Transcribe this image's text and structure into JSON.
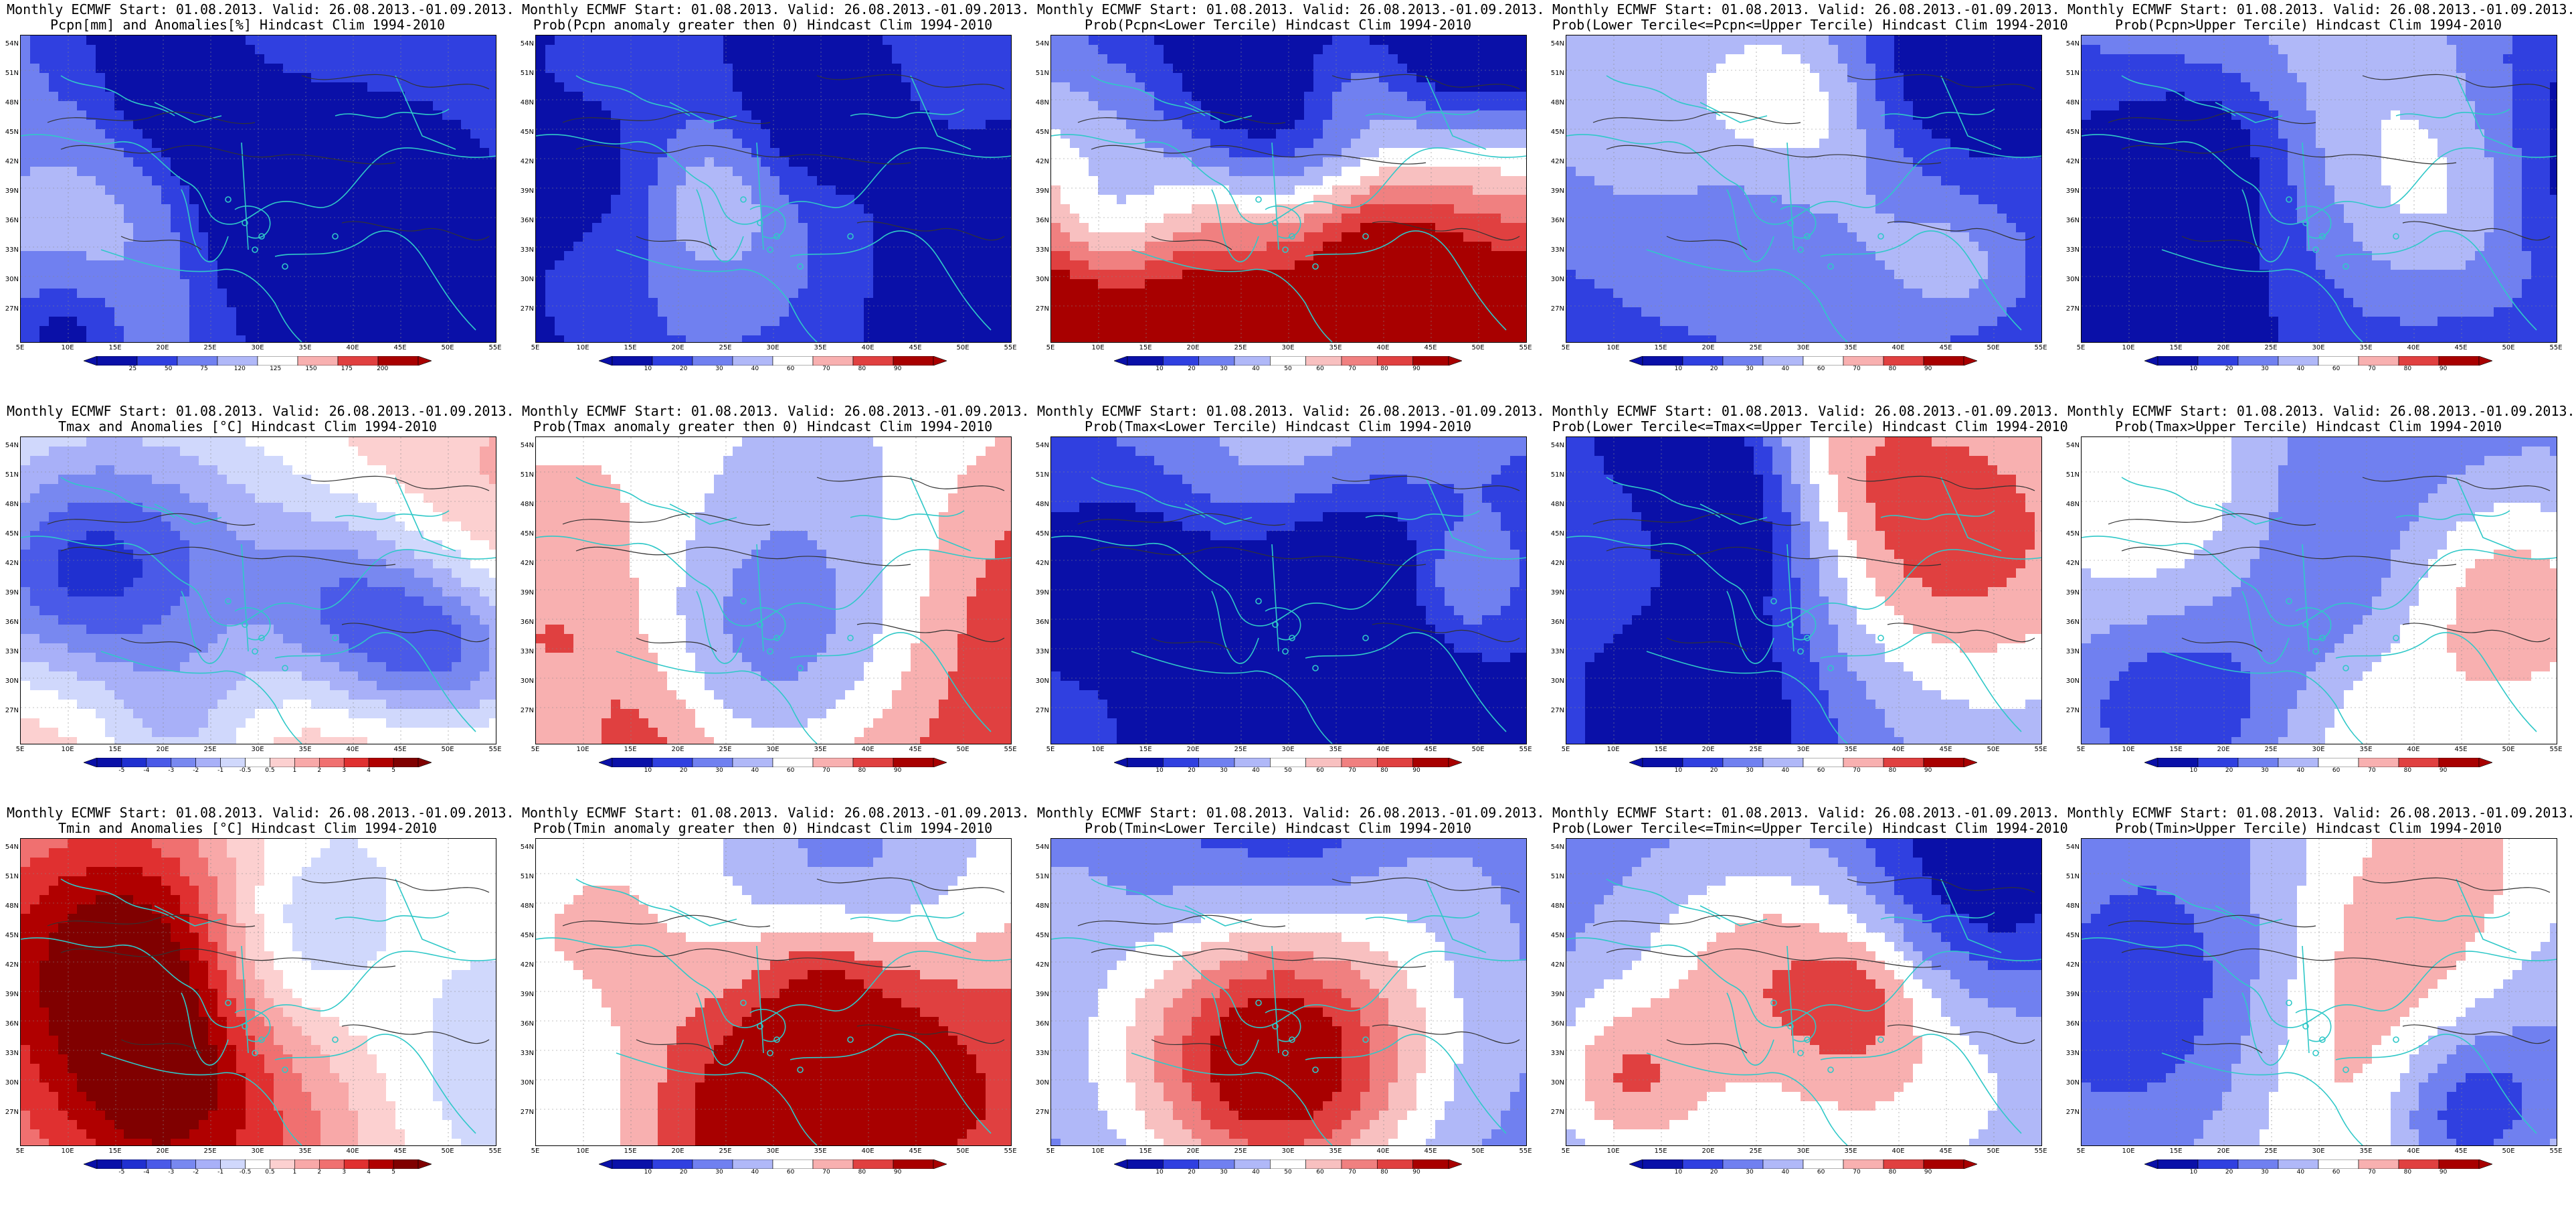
{
  "figure": {
    "row_title_prefix": "Monthly ECMWF Start: 01.08.2013. Valid: 26.08.2013.-01.09.2013.",
    "lat_labels": [
      "54N",
      "51N",
      "48N",
      "45N",
      "42N",
      "39N",
      "36N",
      "33N",
      "30N",
      "27N"
    ],
    "lon_labels": [
      "5E",
      "10E",
      "15E",
      "20E",
      "25E",
      "30E",
      "35E",
      "40E",
      "45E",
      "50E",
      "55E"
    ],
    "colors": {
      "coast": "#30c8c8",
      "contour": "#333333",
      "dark_blue": "#0a10a8",
      "dark_red": "#a80000"
    }
  },
  "panels": [
    {
      "title": "Pcpn[mm] and Anomalies[%] Hindcast Clim 1994-2010",
      "scheme": "pcpn_anom",
      "cbar": [
        "25",
        "50",
        "75",
        "120",
        "125",
        "150",
        "175",
        "200"
      ],
      "colors": [
        "#0a10a8",
        "#3040e0",
        "#7080f0",
        "#b0b8f8",
        "#ffffff",
        "#f8b0b0",
        "#e04040",
        "#a80000"
      ]
    },
    {
      "title": "Prob(Pcpn anomaly greater then 0) Hindcast Clim 1994-2010",
      "scheme": "prob_pcpn_gt0",
      "cbar": [
        "10",
        "20",
        "30",
        "40",
        "60",
        "70",
        "80",
        "90"
      ],
      "colors": [
        "#0a10a8",
        "#3040e0",
        "#7080f0",
        "#b0b8f8",
        "#ffffff",
        "#f8b0b0",
        "#e04040",
        "#a80000"
      ]
    },
    {
      "title": "Prob(Pcpn<Lower Tercile) Hindcast Clim 1994-2010",
      "scheme": "prob_pcpn_lower",
      "cbar": [
        "10",
        "20",
        "30",
        "40",
        "50",
        "60",
        "70",
        "80",
        "90"
      ],
      "colors": [
        "#0a10a8",
        "#3040e0",
        "#7080f0",
        "#b0b8f8",
        "#ffffff",
        "#f8c0c0",
        "#f08080",
        "#e04040",
        "#a80000"
      ]
    },
    {
      "title": "Prob(Lower Tercile<=Pcpn<=Upper Tercile) Hindcast Clim 1994-2010",
      "scheme": "prob_pcpn_mid",
      "cbar": [
        "10",
        "20",
        "30",
        "40",
        "60",
        "70",
        "80",
        "90"
      ],
      "colors": [
        "#0a10a8",
        "#3040e0",
        "#7080f0",
        "#b0b8f8",
        "#ffffff",
        "#f8b0b0",
        "#e04040",
        "#a80000"
      ]
    },
    {
      "title": "Prob(Pcpn>Upper Tercile) Hindcast Clim 1994-2010",
      "scheme": "prob_pcpn_upper",
      "cbar": [
        "10",
        "20",
        "30",
        "40",
        "60",
        "70",
        "80",
        "90"
      ],
      "colors": [
        "#0a10a8",
        "#3040e0",
        "#7080f0",
        "#b0b8f8",
        "#ffffff",
        "#f8b0b0",
        "#e04040",
        "#a80000"
      ]
    },
    {
      "title": "Tmax and Anomalies [°C] Hindcast Clim 1994-2010",
      "scheme": "tmax_anom",
      "cbar": [
        "-5",
        "-4",
        "-3",
        "-2",
        "-1",
        "-0.5",
        "0.5",
        "1",
        "2",
        "3",
        "4",
        "5"
      ],
      "colors": [
        "#0a10a8",
        "#2030d0",
        "#4a5ae8",
        "#7888f0",
        "#a8b0f8",
        "#d0d8fc",
        "#ffffff",
        "#fcd0d0",
        "#f8a8a8",
        "#f07070",
        "#e03030",
        "#b00000",
        "#800000"
      ]
    },
    {
      "title": "Prob(Tmax anomaly greater then 0) Hindcast Clim 1994-2010",
      "scheme": "prob_tmax_gt0",
      "cbar": [
        "10",
        "20",
        "30",
        "40",
        "60",
        "70",
        "80",
        "90"
      ],
      "colors": [
        "#0a10a8",
        "#3040e0",
        "#7080f0",
        "#b0b8f8",
        "#ffffff",
        "#f8b0b0",
        "#e04040",
        "#a80000"
      ]
    },
    {
      "title": "Prob(Tmax<Lower Tercile) Hindcast Clim 1994-2010",
      "scheme": "prob_tmax_lower",
      "cbar": [
        "10",
        "20",
        "30",
        "40",
        "50",
        "60",
        "70",
        "80",
        "90"
      ],
      "colors": [
        "#0a10a8",
        "#3040e0",
        "#7080f0",
        "#b0b8f8",
        "#ffffff",
        "#f8c0c0",
        "#f08080",
        "#e04040",
        "#a80000"
      ]
    },
    {
      "title": "Prob(Lower Tercile<=Tmax<=Upper Tercile) Hindcast Clim 1994-2010",
      "scheme": "prob_tmax_mid",
      "cbar": [
        "10",
        "20",
        "30",
        "40",
        "60",
        "70",
        "80",
        "90"
      ],
      "colors": [
        "#0a10a8",
        "#3040e0",
        "#7080f0",
        "#b0b8f8",
        "#ffffff",
        "#f8b0b0",
        "#e04040",
        "#a80000"
      ]
    },
    {
      "title": "Prob(Tmax>Upper Tercile) Hindcast Clim 1994-2010",
      "scheme": "prob_tmax_upper",
      "cbar": [
        "10",
        "20",
        "30",
        "40",
        "60",
        "70",
        "80",
        "90"
      ],
      "colors": [
        "#0a10a8",
        "#3040e0",
        "#7080f0",
        "#b0b8f8",
        "#ffffff",
        "#f8b0b0",
        "#e04040",
        "#a80000"
      ]
    },
    {
      "title": "Tmin and Anomalies [°C] Hindcast Clim 1994-2010",
      "scheme": "tmin_anom",
      "cbar": [
        "-5",
        "-4",
        "-3",
        "-2",
        "-1",
        "-0.5",
        "0.5",
        "1",
        "2",
        "3",
        "4",
        "5"
      ],
      "colors": [
        "#0a10a8",
        "#2030d0",
        "#4a5ae8",
        "#7888f0",
        "#a8b0f8",
        "#d0d8fc",
        "#ffffff",
        "#fcd0d0",
        "#f8a8a8",
        "#f07070",
        "#e03030",
        "#b00000",
        "#800000"
      ]
    },
    {
      "title": "Prob(Tmin anomaly greater then 0) Hindcast Clim 1994-2010",
      "scheme": "prob_tmin_gt0",
      "cbar": [
        "10",
        "20",
        "30",
        "40",
        "60",
        "70",
        "80",
        "90"
      ],
      "colors": [
        "#0a10a8",
        "#3040e0",
        "#7080f0",
        "#b0b8f8",
        "#ffffff",
        "#f8b0b0",
        "#e04040",
        "#a80000"
      ]
    },
    {
      "title": "Prob(Tmin<Lower Tercile) Hindcast Clim 1994-2010",
      "scheme": "prob_tmin_lower",
      "cbar": [
        "10",
        "20",
        "30",
        "40",
        "50",
        "60",
        "70",
        "80",
        "90"
      ],
      "colors": [
        "#0a10a8",
        "#3040e0",
        "#7080f0",
        "#b0b8f8",
        "#ffffff",
        "#f8c0c0",
        "#f08080",
        "#e04040",
        "#a80000"
      ]
    },
    {
      "title": "Prob(Lower Tercile<=Tmin<=Upper Tercile) Hindcast Clim 1994-2010",
      "scheme": "prob_tmin_mid",
      "cbar": [
        "10",
        "20",
        "30",
        "40",
        "60",
        "70",
        "80",
        "90"
      ],
      "colors": [
        "#0a10a8",
        "#3040e0",
        "#7080f0",
        "#b0b8f8",
        "#ffffff",
        "#f8b0b0",
        "#e04040",
        "#a80000"
      ]
    },
    {
      "title": "Prob(Tmin>Upper Tercile) Hindcast Clim 1994-2010",
      "scheme": "prob_tmin_upper",
      "cbar": [
        "10",
        "20",
        "30",
        "40",
        "60",
        "70",
        "80",
        "90"
      ],
      "colors": [
        "#0a10a8",
        "#3040e0",
        "#7080f0",
        "#b0b8f8",
        "#ffffff",
        "#f8b0b0",
        "#e04040",
        "#a80000"
      ]
    }
  ]
}
